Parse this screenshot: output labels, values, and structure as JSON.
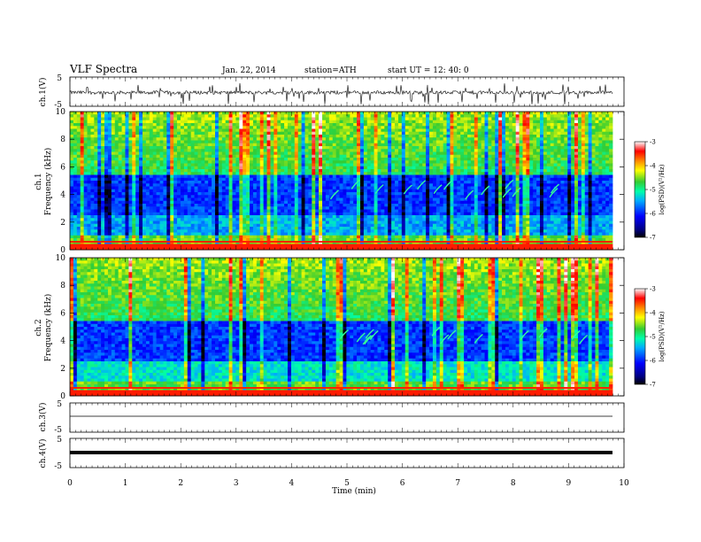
{
  "header": {
    "title": "VLF  Spectra",
    "date": "Jan. 22, 2014",
    "station": "station=ATH",
    "start": "start  UT  =   12: 40: 0"
  },
  "chart_data": [
    {
      "type": "line",
      "panel": "ch1-waveform",
      "ylabel": "ch.1(V)",
      "ylim": [
        -5,
        5
      ],
      "yticks": [
        "5",
        "-5"
      ],
      "xlim": [
        0,
        10
      ],
      "series": [
        {
          "values_summary": "continuous waveform, baseline near -0.3 V with sparse spikes toward -4.5 V"
        }
      ]
    },
    {
      "type": "heatmap",
      "panel": "ch1-spectrogram",
      "ylabel": "ch.1\nFrequency (kHz)",
      "ylim": [
        0,
        10
      ],
      "yticks": [
        "0",
        "2",
        "4",
        "6",
        "8",
        "10"
      ],
      "xlim": [
        0,
        10
      ],
      "colorbar": {
        "label": "log(PSD)(V²/Hz)",
        "range": [
          -7,
          -3
        ],
        "ticks": [
          "-3",
          "-4",
          "-5",
          "-6",
          "-7"
        ]
      }
    },
    {
      "type": "heatmap",
      "panel": "ch2-spectrogram",
      "ylabel": "ch.2\nFrequency (kHz)",
      "ylim": [
        0,
        10
      ],
      "yticks": [
        "0",
        "2",
        "4",
        "6",
        "8",
        "10"
      ],
      "xlim": [
        0,
        10
      ],
      "colorbar": {
        "label": "log(PSD)(V²/Hz)",
        "range": [
          -7,
          -3
        ],
        "ticks": [
          "-3",
          "-4",
          "-5",
          "-6",
          "-7"
        ]
      }
    },
    {
      "type": "line",
      "panel": "ch3-waveform",
      "ylabel": "ch.3(V)",
      "ylim": [
        -5,
        5
      ],
      "yticks": [
        "5",
        "-5"
      ],
      "xlim": [
        0,
        10
      ],
      "series": [
        {
          "values_summary": "flat near 0 V"
        }
      ]
    },
    {
      "type": "line",
      "panel": "ch4-waveform",
      "ylabel": "ch.4(V)",
      "ylim": [
        -5,
        5
      ],
      "yticks": [
        "5",
        "-5"
      ],
      "xlim": [
        0,
        10
      ],
      "xlabel": "Time  (min)",
      "xticks": [
        "0",
        "1",
        "2",
        "3",
        "4",
        "5",
        "6",
        "7",
        "8",
        "9",
        "10"
      ],
      "series": [
        {
          "values_summary": "thick band near -0.5 V"
        }
      ]
    }
  ]
}
